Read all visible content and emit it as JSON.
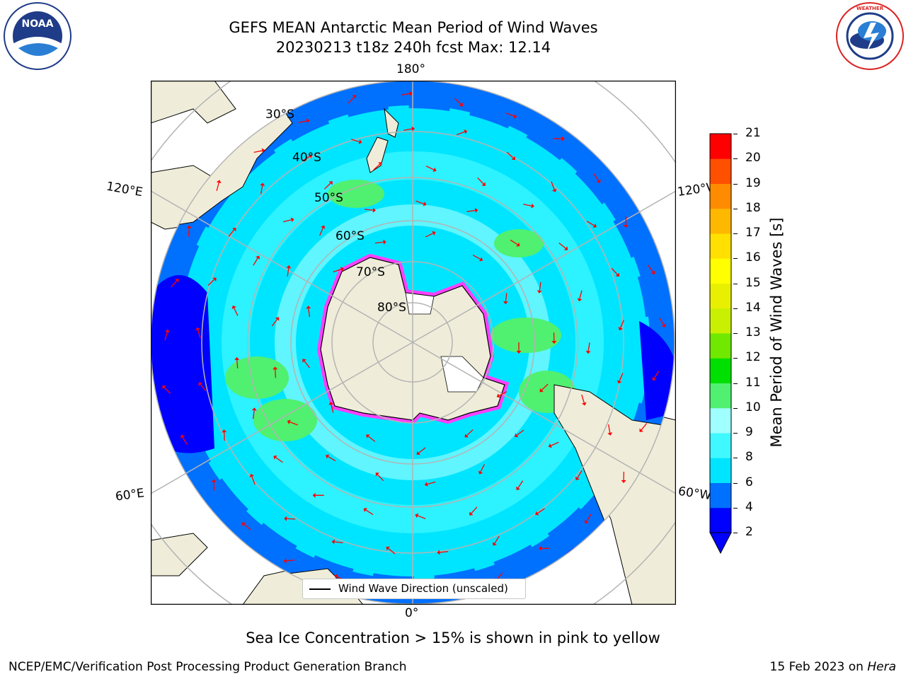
{
  "title": {
    "line1": "GEFS MEAN Antarctic Mean Period of Wind Waves",
    "line2": "20230213 t18z 240h fcst   Max: 12.14"
  },
  "logos": {
    "noaa": {
      "text": "NOAA",
      "ring_text": "NATIONAL OCEANIC AND ATMOSPHERIC ADMINISTRATION · U.S. DEPARTMENT OF COMMERCE"
    },
    "nws": {
      "ring_text": "NATIONAL WEATHER SERVICE"
    }
  },
  "map": {
    "longitude_labels": {
      "top": "180°",
      "bottom": "0°",
      "upper_left": "120°E",
      "lower_left": "60°E",
      "upper_right": "120°W",
      "lower_right": "60°W"
    },
    "latitude_labels": [
      "30°S",
      "40°S",
      "50°S",
      "60°S",
      "70°S",
      "80°S"
    ],
    "legend": "Wind Wave Direction (unscaled)",
    "colors": {
      "land": "#efedd9",
      "ice": "#ff40ff",
      "arrow": "#ff0000",
      "grid": "#b4b4b4"
    }
  },
  "colorbar": {
    "label": "Mean Period of Wind Waves [s]",
    "ticks": [
      "2",
      "4",
      "6",
      "8",
      "9",
      "10",
      "11",
      "12",
      "13",
      "14",
      "15",
      "16",
      "17",
      "18",
      "19",
      "20",
      "21"
    ],
    "colors": [
      "#0000ff",
      "#0070ff",
      "#00e5ff",
      "#40f8ff",
      "#a0ffff",
      "#50f070",
      "#00e000",
      "#70e800",
      "#c8f000",
      "#e8f000",
      "#ffff00",
      "#ffe000",
      "#ffb800",
      "#ff8c00",
      "#ff5000",
      "#ff0000"
    ]
  },
  "footnote": "Sea Ice Concentration > 15% is shown in pink to yellow",
  "footer": {
    "left": "NCEP/EMC/Verification Post Processing Product Generation Branch",
    "right_prefix": "15 Feb 2023 on ",
    "right_host": "Hera"
  }
}
